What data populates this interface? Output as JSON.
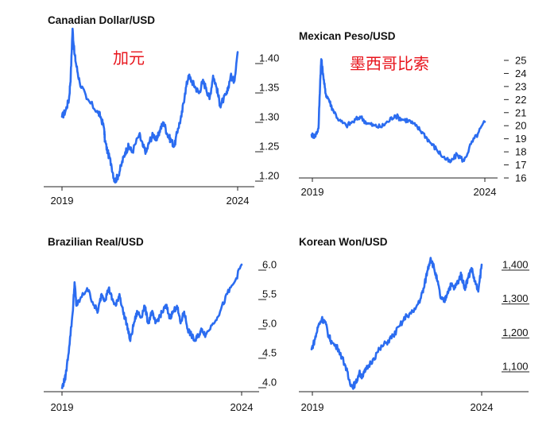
{
  "figure_title": "",
  "colors": {
    "line": "#2b6cf0",
    "annotation": "#e8141c",
    "axis": "#222222"
  },
  "chart_data": [
    {
      "type": "line",
      "title": "Canadian Dollar/USD",
      "annotation": "加元",
      "xlabel": "",
      "ylabel": "",
      "x_ticks": [
        "2019",
        "2024"
      ],
      "xlim": [
        2019.0,
        2024.0
      ],
      "ylim": [
        1.19,
        1.45
      ],
      "y_tick_values": [
        1.4,
        1.35,
        1.3,
        1.25,
        1.2
      ],
      "y_tick_labels": [
        "1.40",
        "1.35",
        "1.30",
        "1.25",
        "1.20"
      ],
      "series": [
        {
          "name": "Canadian Dollar/USD",
          "x": [
            2019.0,
            2019.1,
            2019.2,
            2019.25,
            2019.3,
            2019.35,
            2019.4,
            2019.5,
            2019.7,
            2020.0,
            2020.1,
            2020.2,
            2020.22,
            2020.3,
            2020.4,
            2020.5,
            2020.6,
            2020.7,
            2020.8,
            2020.9,
            2021.0,
            2021.2,
            2021.3,
            2021.4,
            2021.5,
            2021.6,
            2021.7,
            2021.8,
            2021.9,
            2022.0,
            2022.1,
            2022.2,
            2022.3,
            2022.4,
            2022.5,
            2022.6,
            2022.7,
            2022.8,
            2022.9,
            2023.0,
            2023.1,
            2023.2,
            2023.3,
            2023.4,
            2023.5,
            2023.6,
            2023.7,
            2023.8,
            2023.9,
            2024.0
          ],
          "values": [
            1.3,
            1.31,
            1.33,
            1.37,
            1.45,
            1.41,
            1.39,
            1.36,
            1.33,
            1.31,
            1.3,
            1.28,
            1.26,
            1.24,
            1.22,
            1.19,
            1.2,
            1.22,
            1.24,
            1.25,
            1.24,
            1.27,
            1.25,
            1.24,
            1.26,
            1.27,
            1.26,
            1.28,
            1.29,
            1.27,
            1.26,
            1.25,
            1.28,
            1.3,
            1.34,
            1.37,
            1.36,
            1.35,
            1.34,
            1.36,
            1.35,
            1.33,
            1.37,
            1.35,
            1.32,
            1.33,
            1.34,
            1.37,
            1.36,
            1.41
          ]
        }
      ]
    },
    {
      "type": "line",
      "title": "Mexican Peso/USD",
      "annotation": "墨西哥比索",
      "xlabel": "",
      "ylabel": "",
      "x_ticks": [
        "2019",
        "2024"
      ],
      "xlim": [
        2019.0,
        2024.0
      ],
      "ylim": [
        16,
        25
      ],
      "y_tick_values": [
        25,
        24,
        23,
        22,
        21,
        20,
        19,
        18,
        17,
        16
      ],
      "y_tick_labels": [
        "25",
        "24",
        "23",
        "22",
        "21",
        "20",
        "19",
        "18",
        "17",
        "16"
      ],
      "series": [
        {
          "name": "Mexican Peso/USD",
          "x": [
            2019.0,
            2019.1,
            2019.2,
            2019.25,
            2019.28,
            2019.33,
            2019.4,
            2019.5,
            2019.6,
            2019.8,
            2020.0,
            2020.2,
            2020.4,
            2020.6,
            2020.8,
            2021.0,
            2021.2,
            2021.4,
            2021.6,
            2021.8,
            2022.0,
            2022.2,
            2022.4,
            2022.6,
            2022.8,
            2023.0,
            2023.2,
            2023.4,
            2023.6,
            2023.8,
            2024.0
          ],
          "values": [
            19.3,
            19.2,
            19.8,
            23.5,
            25.1,
            24.0,
            22.5,
            22.0,
            21.3,
            20.4,
            20.0,
            20.3,
            20.7,
            20.2,
            20.0,
            19.9,
            20.3,
            20.8,
            20.5,
            20.4,
            20.0,
            19.5,
            18.8,
            18.2,
            17.6,
            17.2,
            17.8,
            17.3,
            18.6,
            19.4,
            20.3
          ]
        }
      ]
    },
    {
      "type": "line",
      "title": "Brazilian Real/USD",
      "xlabel": "",
      "ylabel": "",
      "x_ticks": [
        "2019",
        "2024"
      ],
      "xlim": [
        2019.0,
        2024.0
      ],
      "ylim": [
        3.9,
        6.1
      ],
      "y_tick_values": [
        6.0,
        5.5,
        5.0,
        4.5,
        4.0
      ],
      "y_tick_labels": [
        "6.0",
        "5.5",
        "5.0",
        "4.5",
        "4.0"
      ],
      "series": [
        {
          "name": "Brazilian Real/USD",
          "x": [
            2019.0,
            2019.05,
            2019.1,
            2019.2,
            2019.3,
            2019.35,
            2019.4,
            2019.5,
            2019.7,
            2019.9,
            2020.0,
            2020.1,
            2020.2,
            2020.3,
            2020.4,
            2020.5,
            2020.6,
            2020.7,
            2020.8,
            2020.9,
            2021.0,
            2021.1,
            2021.2,
            2021.3,
            2021.4,
            2021.5,
            2021.6,
            2021.7,
            2021.8,
            2021.9,
            2022.0,
            2022.1,
            2022.2,
            2022.3,
            2022.4,
            2022.5,
            2022.6,
            2022.7,
            2022.8,
            2022.9,
            2023.0,
            2023.2,
            2023.4,
            2023.6,
            2023.8,
            2024.0
          ],
          "values": [
            3.9,
            4.0,
            4.1,
            4.6,
            5.2,
            5.7,
            5.3,
            5.4,
            5.6,
            5.3,
            5.2,
            5.5,
            5.4,
            5.6,
            5.4,
            5.3,
            5.5,
            5.2,
            5.0,
            4.7,
            5.0,
            5.2,
            5.1,
            5.3,
            5.0,
            5.2,
            5.0,
            5.1,
            5.2,
            5.3,
            5.1,
            5.2,
            5.3,
            5.0,
            5.2,
            4.9,
            4.8,
            4.7,
            4.8,
            4.9,
            4.8,
            5.0,
            5.2,
            5.5,
            5.7,
            6.0
          ]
        }
      ]
    },
    {
      "type": "line",
      "title": "Korean Won/USD",
      "xlabel": "",
      "ylabel": "",
      "x_ticks": [
        "2019",
        "2024"
      ],
      "xlim": [
        2019.0,
        2024.0
      ],
      "ylim": [
        1030,
        1440
      ],
      "y_tick_values": [
        1400,
        1300,
        1200,
        1100
      ],
      "y_tick_labels": [
        "1,400",
        "1,300",
        "1,200",
        "1,100"
      ],
      "series": [
        {
          "name": "Korean Won/USD",
          "x": [
            2019.0,
            2019.1,
            2019.2,
            2019.3,
            2019.4,
            2019.5,
            2019.6,
            2019.8,
            2020.0,
            2020.1,
            2020.2,
            2020.3,
            2020.4,
            2020.5,
            2020.6,
            2020.8,
            2021.0,
            2021.2,
            2021.4,
            2021.6,
            2021.8,
            2022.0,
            2022.2,
            2022.3,
            2022.4,
            2022.5,
            2022.6,
            2022.7,
            2022.8,
            2022.9,
            2023.0,
            2023.1,
            2023.2,
            2023.3,
            2023.4,
            2023.5,
            2023.6,
            2023.7,
            2023.8,
            2023.9,
            2024.0
          ],
          "values": [
            1150,
            1180,
            1220,
            1240,
            1230,
            1190,
            1170,
            1150,
            1100,
            1060,
            1040,
            1050,
            1080,
            1070,
            1090,
            1120,
            1150,
            1170,
            1190,
            1220,
            1250,
            1260,
            1300,
            1330,
            1380,
            1420,
            1390,
            1350,
            1300,
            1290,
            1320,
            1340,
            1330,
            1350,
            1370,
            1330,
            1360,
            1390,
            1350,
            1320,
            1400
          ]
        }
      ]
    }
  ]
}
